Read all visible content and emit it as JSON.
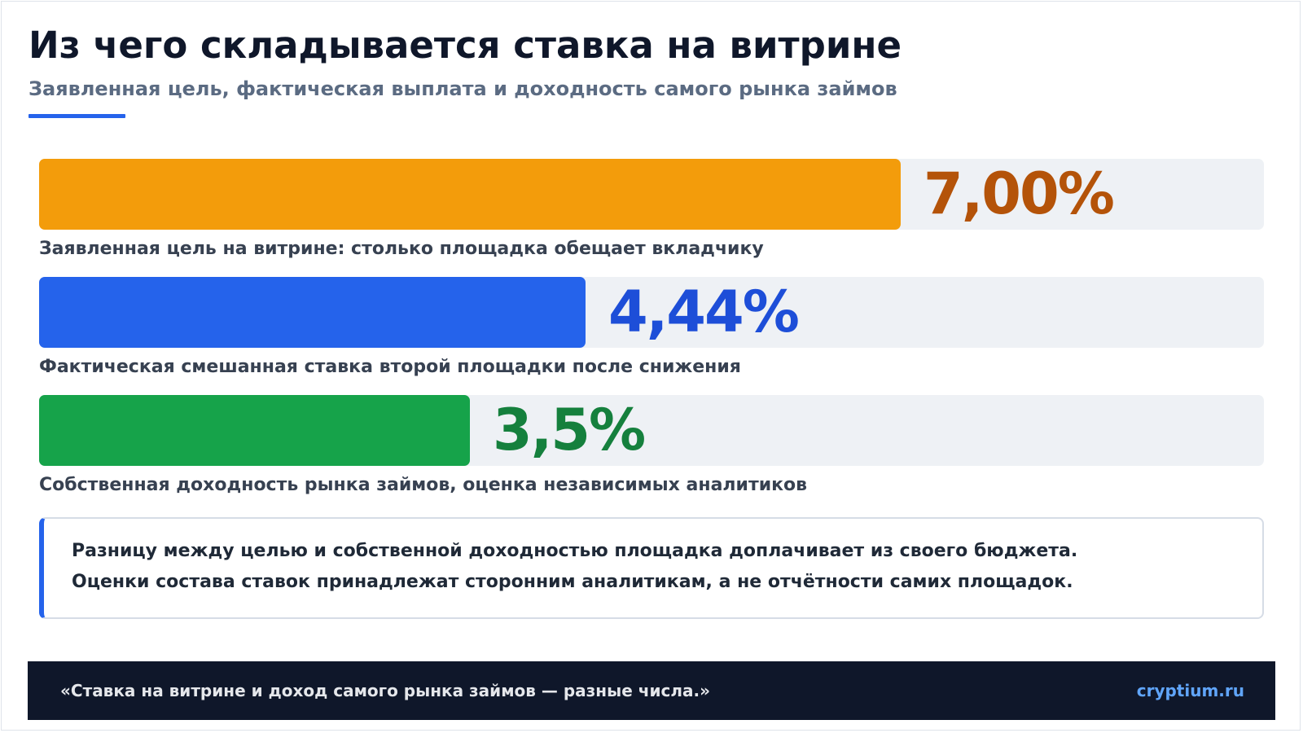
{
  "header": {
    "title": "Из чего складывается ставка на витрине",
    "subtitle": "Заявленная цель, фактическая выплата и доходность самого рынка займов"
  },
  "chart_data": {
    "type": "bar",
    "orientation": "horizontal",
    "categories": [
      "Заявленная цель на витрине: столько площадка обещает вкладчику",
      "Фактическая смешанная ставка второй площадки после снижения",
      "Собственная доходность рынка займов, оценка независимых аналитиков"
    ],
    "values": [
      7.0,
      4.44,
      3.5
    ],
    "value_labels": [
      "7,00%",
      "4,44%",
      "3,5%"
    ],
    "unit": "%",
    "xlim": [
      0,
      9.95
    ],
    "colors": [
      "#f39c0b",
      "#2563eb",
      "#16a34a"
    ],
    "label_colors": [
      "#b45309",
      "#1d4ed8",
      "#15803d"
    ],
    "grid": false,
    "legend": "none"
  },
  "note": {
    "line1": "Разницу между целью и собственной доходностью площадка доплачивает из своего бюджета.",
    "line2": "Оценки состава ставок принадлежат сторонним аналитикам, а не отчётности самих площадок."
  },
  "footer": {
    "quote": "«Ставка на витрине и доход самого рынка займов — разные числа.»",
    "brand": "cryptium.ru"
  }
}
